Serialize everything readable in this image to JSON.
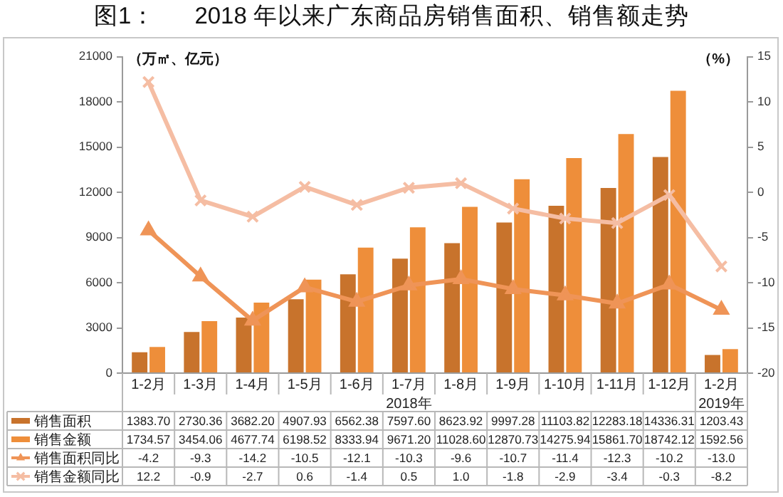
{
  "chart_data": {
    "type": "bar",
    "title": "图1：      2018 年以来广东商品房销售面积、销售额走势",
    "categories": [
      "1-2月",
      "1-3月",
      "1-4月",
      "1-5月",
      "1-6月",
      "1-7月",
      "1-8月",
      "1-9月",
      "1-10月",
      "1-11月",
      "1-12月",
      "1-2月"
    ],
    "series": [
      {
        "name": "销售面积",
        "color": "#c8732c",
        "values": [
          1383.7,
          2730.36,
          3682.2,
          4907.93,
          6562.38,
          7597.6,
          8623.92,
          9997.28,
          11103.82,
          12283.18,
          14336.31,
          1203.43
        ],
        "value_labels": [
          "1383.70",
          "2730.36",
          "3682.20",
          "4907.93",
          "6562.38",
          "7597.60",
          "8623.92",
          "9997.28",
          "11103.82",
          "12283.18",
          "14336.31",
          "1203.43"
        ]
      },
      {
        "name": "销售金额",
        "color": "#ee8e3a",
        "values": [
          1734.57,
          3454.06,
          4677.74,
          6198.52,
          8333.94,
          9671.2,
          11028.6,
          12870.73,
          14275.94,
          15861.7,
          18742.12,
          1592.56
        ],
        "value_labels": [
          "1734.57",
          "3454.06",
          "4677.74",
          "6198.52",
          "8333.94",
          "9671.20",
          "11028.60",
          "12870.73",
          "14275.94",
          "15861.70",
          "18742.12",
          "1592.56"
        ]
      },
      {
        "name": "销售面积同比",
        "type": "line",
        "axis": "y2",
        "marker": "triangle",
        "color": "#ef9457",
        "values": [
          -4.2,
          -9.3,
          -14.2,
          -10.5,
          -12.1,
          -10.3,
          -9.6,
          -10.7,
          -11.4,
          -12.3,
          -10.2,
          -13.0
        ],
        "value_labels": [
          "-4.2",
          "-9.3",
          "-14.2",
          "-10.5",
          "-12.1",
          "-10.3",
          "-9.6",
          "-10.7",
          "-11.4",
          "-12.3",
          "-10.2",
          "-13.0"
        ]
      },
      {
        "name": "销售金额同比",
        "type": "line",
        "axis": "y2",
        "marker": "cross",
        "color": "#f5bda3",
        "values": [
          12.2,
          -0.9,
          -2.7,
          0.6,
          -1.4,
          0.5,
          1.0,
          -1.8,
          -2.9,
          -3.4,
          -0.3,
          -8.2
        ],
        "value_labels": [
          "12.2",
          "-0.9",
          "-2.7",
          "0.6",
          "-1.4",
          "0.5",
          "1.0",
          "-1.8",
          "-2.9",
          "-3.4",
          "-0.3",
          "-8.2"
        ]
      }
    ],
    "ylabel": "（万㎡、亿元）",
    "y2label": "（%）",
    "ylim": [
      0,
      21000
    ],
    "yticks": [
      0,
      3000,
      6000,
      9000,
      12000,
      15000,
      18000,
      21000
    ],
    "y2lim": [
      -20,
      15
    ],
    "y2ticks": [
      -20,
      -15,
      -10,
      -5,
      0,
      5,
      10,
      15
    ],
    "legend": "bottom",
    "grid": false,
    "annotations": [
      "2018年",
      "2019年"
    ]
  }
}
